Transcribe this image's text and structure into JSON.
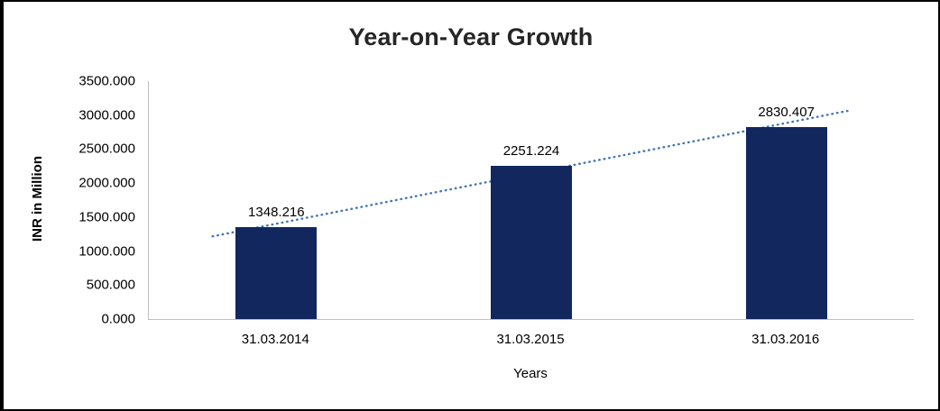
{
  "chart_data": {
    "type": "bar",
    "title": "Year-on-Year Growth",
    "categories": [
      "31.03.2014",
      "31.03.2015",
      "31.03.2016"
    ],
    "values": [
      1348.216,
      2251.224,
      2830.407
    ],
    "data_labels": [
      "1348.216",
      "2251.224",
      "2830.407"
    ],
    "xlabel": "Years",
    "ylabel": "INR in Million",
    "ylim": [
      0,
      3500
    ],
    "ytick_step": 500,
    "ytick_labels": [
      "0.000",
      "500.000",
      "1000.000",
      "1500.000",
      "2000.000",
      "2500.000",
      "3000.000",
      "3500.000"
    ],
    "grid": false,
    "legend": "none",
    "trendline": {
      "type": "linear",
      "style": "dotted"
    },
    "colors": {
      "bar": "#12275E",
      "trendline": "#4176B5",
      "title": "#262626",
      "axis_line": "#BFBFBF",
      "text": "#000000"
    }
  }
}
